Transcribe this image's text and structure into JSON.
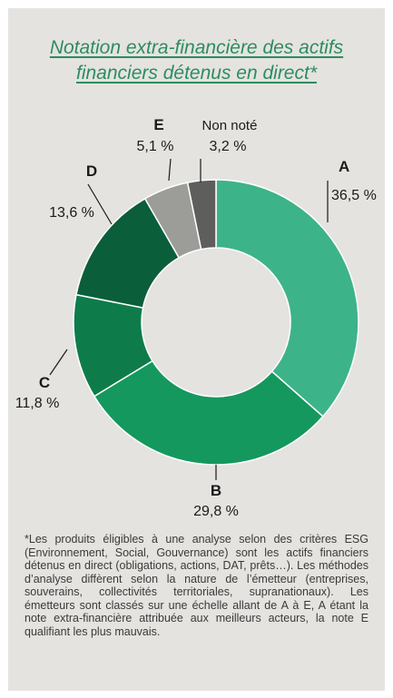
{
  "chart_data": {
    "type": "pie",
    "title_lines": [
      "Notation extra-financière des actifs",
      "financiers détenus en direct*"
    ],
    "slices": [
      {
        "label": "A",
        "value": 36.5,
        "value_label": "36,5 %",
        "color": "#3db38a"
      },
      {
        "label": "B",
        "value": 29.8,
        "value_label": "29,8 %",
        "color": "#14985e"
      },
      {
        "label": "C",
        "value": 11.8,
        "value_label": "11,8 %",
        "color": "#0e7c4a"
      },
      {
        "label": "D",
        "value": 13.6,
        "value_label": "13,6 %",
        "color": "#0b5e3a"
      },
      {
        "label": "E",
        "value": 5.1,
        "value_label": "5,1 %",
        "color": "#9c9c99"
      },
      {
        "label": "Non noté",
        "value": 3.2,
        "value_label": "3,2 %",
        "color": "#5e5e5c"
      }
    ]
  },
  "footnote": "*Les produits éligibles à une analyse selon des critères ESG (Environnement, Social, Gouvernance) sont les actifs financiers détenus en direct (obligations, actions, DAT, prêts…). Les méthodes d’analyse diffèrent selon la nature de l’émetteur (entreprises, souverains, collectivités territoriales, supranationaux). Les émetteurs sont classés sur une échelle allant de A à E, A étant la note extra-financière attribuée aux meilleurs acteurs, la note E qualifiant les plus mauvais.",
  "colors": {
    "background": "#e4e3e0",
    "title": "#2e8c5f",
    "text": "#1a1a1a"
  }
}
